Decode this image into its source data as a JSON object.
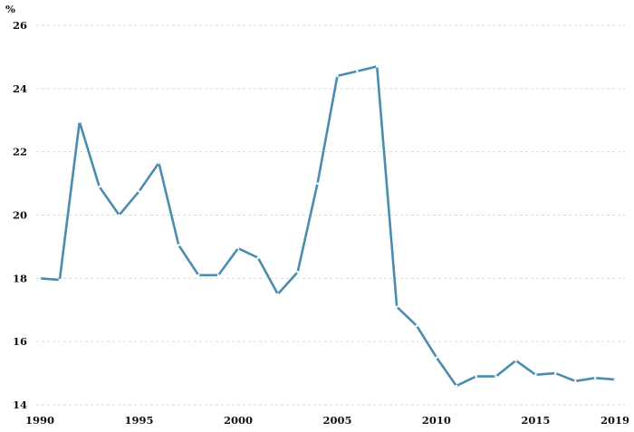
{
  "chart_data": {
    "type": "line",
    "title": "",
    "xlabel": "",
    "ylabel": "",
    "unit_label": "%",
    "grid": true,
    "xlim": [
      1990,
      2019
    ],
    "ylim": [
      14,
      26
    ],
    "x_ticks": [
      1990,
      1995,
      2000,
      2005,
      2010,
      2015,
      2019
    ],
    "y_ticks": [
      14,
      16,
      18,
      20,
      22,
      24,
      26
    ],
    "colors": {
      "line": "#4a8db0",
      "grid": "#d9d9d9",
      "text": "#111111"
    },
    "x": [
      1990,
      1991,
      1992,
      1993,
      1994,
      1995,
      1996,
      1997,
      1998,
      1999,
      2000,
      2001,
      2002,
      2003,
      2004,
      2005,
      2006,
      2007,
      2008,
      2009,
      2010,
      2011,
      2012,
      2013,
      2014,
      2015,
      2016,
      2017,
      2018,
      2019
    ],
    "series": [
      {
        "values": [
          18.0,
          17.95,
          22.95,
          20.9,
          20.0,
          20.75,
          21.65,
          19.05,
          18.1,
          18.1,
          18.95,
          18.65,
          17.5,
          18.2,
          21.0,
          24.4,
          24.55,
          24.7,
          17.1,
          16.5,
          15.5,
          14.6,
          14.9,
          14.9,
          15.4,
          14.95,
          15.0,
          14.75,
          14.85,
          14.8
        ]
      }
    ]
  }
}
